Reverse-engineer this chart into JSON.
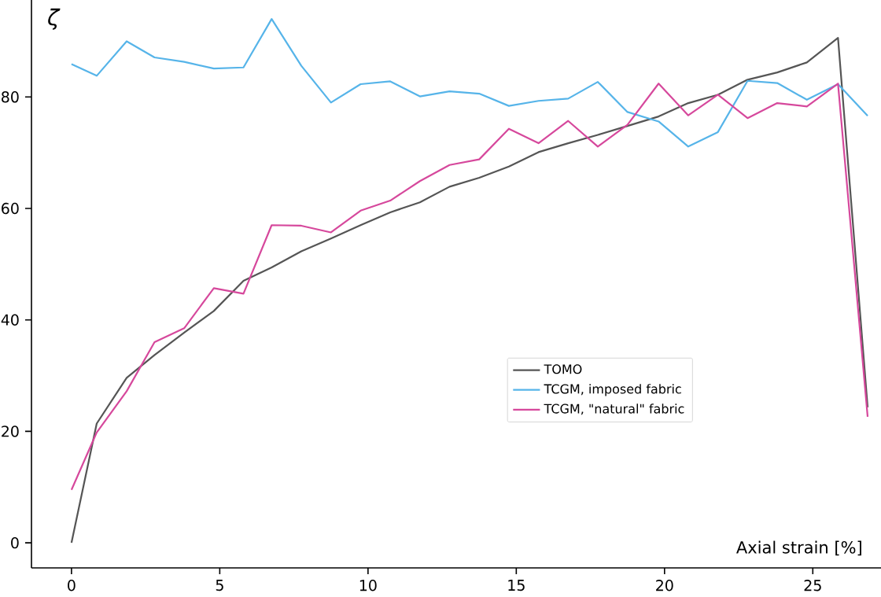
{
  "chart_data": {
    "type": "line",
    "xlabel": "Axial strain [%]",
    "ylabel": "ζ",
    "x": [
      0,
      0.85,
      1.86,
      2.8,
      3.8,
      4.8,
      5.8,
      6.75,
      7.75,
      8.75,
      9.75,
      10.75,
      11.75,
      12.75,
      13.75,
      14.75,
      15.75,
      16.75,
      17.75,
      18.75,
      19.8,
      20.8,
      21.8,
      22.8,
      23.8,
      24.8,
      25.85,
      26.85
    ],
    "series": [
      {
        "name": "TOMO",
        "color": "#555555",
        "values": [
          0.0,
          21.4,
          29.6,
          33.7,
          37.7,
          41.6,
          47.0,
          49.4,
          52.3,
          54.6,
          57.0,
          59.3,
          61.1,
          63.9,
          65.5,
          67.5,
          70.1,
          71.7,
          73.2,
          74.8,
          76.5,
          78.9,
          80.4,
          83.1,
          84.4,
          86.2,
          90.6,
          24.3
        ]
      },
      {
        "name": "TCGM, imposed fabric",
        "color": "#56b4e9",
        "values": [
          85.9,
          83.8,
          90.0,
          87.1,
          86.3,
          85.1,
          85.3,
          94.0,
          85.6,
          79.0,
          82.3,
          82.8,
          80.1,
          81.0,
          80.6,
          78.4,
          79.3,
          79.7,
          82.7,
          77.3,
          75.6,
          71.1,
          73.7,
          82.9,
          82.5,
          79.5,
          82.3,
          76.6
        ]
      },
      {
        "name": "TCGM, \"natural\" fabric",
        "color": "#d6489c",
        "values": [
          9.5,
          19.8,
          27.2,
          36.0,
          38.5,
          45.7,
          44.7,
          57.0,
          56.9,
          55.7,
          59.6,
          61.4,
          64.9,
          67.8,
          68.8,
          74.3,
          71.7,
          75.7,
          71.1,
          75.0,
          82.4,
          76.7,
          80.4,
          76.2,
          78.9,
          78.3,
          82.4,
          22.6
        ]
      }
    ],
    "xlim": [
      -1.35,
      27.3
    ],
    "ylim": [
      -4.5,
      97.4
    ],
    "xticks": [
      0,
      5,
      10,
      15,
      20,
      25
    ],
    "yticks": [
      0,
      20,
      40,
      60,
      80
    ],
    "legend": "center right",
    "grid": false
  }
}
